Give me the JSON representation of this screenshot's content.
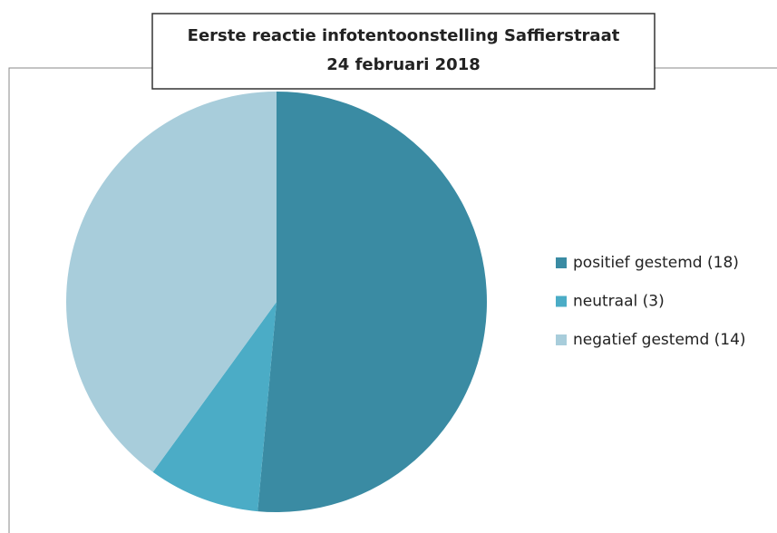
{
  "chart_data": {
    "type": "pie",
    "title": "Eerste reactie infotentoonstelling Saffierstraat",
    "subtitle": "24 februari 2018",
    "categories": [
      "positief gestemd (18)",
      "neutraal (3)",
      "negatief gestemd (14)"
    ],
    "values": [
      18,
      3,
      14
    ],
    "colors": [
      "#3a8ba3",
      "#4bacc6",
      "#a8cddb"
    ],
    "legend": "right"
  }
}
